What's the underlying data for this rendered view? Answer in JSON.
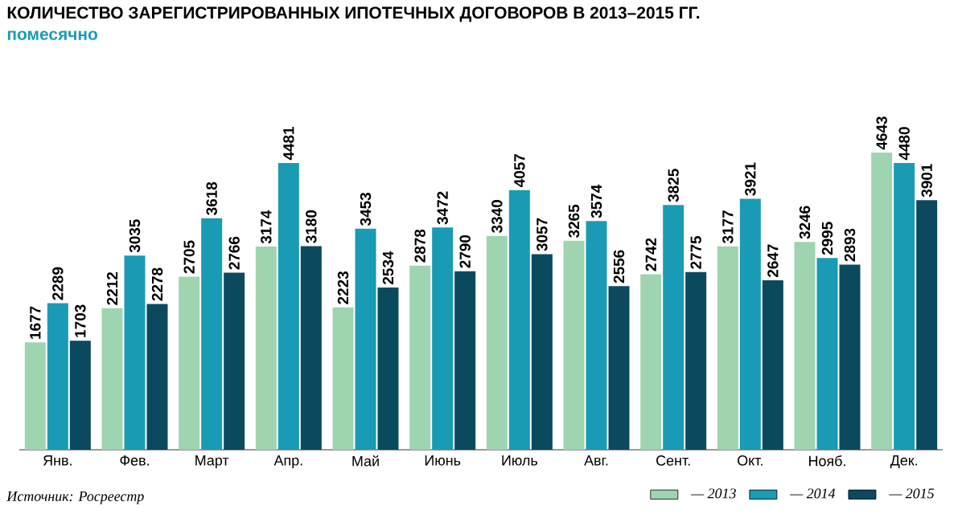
{
  "chart_data": {
    "type": "bar",
    "title": "КОЛИЧЕСТВО ЗАРЕГИСТРИРОВАННЫХ ИПОТЕЧНЫХ ДОГОВОРОВ В 2013–2015 ГГ.",
    "subtitle": "помесячно",
    "categories": [
      "Янв.",
      "Фев.",
      "Март",
      "Апр.",
      "Май",
      "Июнь",
      "Июль",
      "Авг.",
      "Сент.",
      "Окт.",
      "Нояб.",
      "Дек."
    ],
    "series": [
      {
        "name": "— 2013",
        "color": "#9fd4b0",
        "values": [
          1677,
          2212,
          2705,
          3174,
          2223,
          2878,
          3340,
          3265,
          2742,
          3177,
          3246,
          4643
        ]
      },
      {
        "name": "— 2014",
        "color": "#1a9bb5",
        "values": [
          2289,
          3035,
          3618,
          4481,
          3453,
          3472,
          4057,
          3574,
          3825,
          3921,
          2995,
          4480
        ]
      },
      {
        "name": "— 2015",
        "color": "#0b4a5e",
        "values": [
          1703,
          2278,
          2766,
          3180,
          2534,
          2790,
          3057,
          2556,
          2775,
          2647,
          2893,
          3901
        ]
      }
    ],
    "data_labels": true,
    "legend": "bottom right",
    "annotations": [
      "Источник: Росреестр"
    ]
  }
}
